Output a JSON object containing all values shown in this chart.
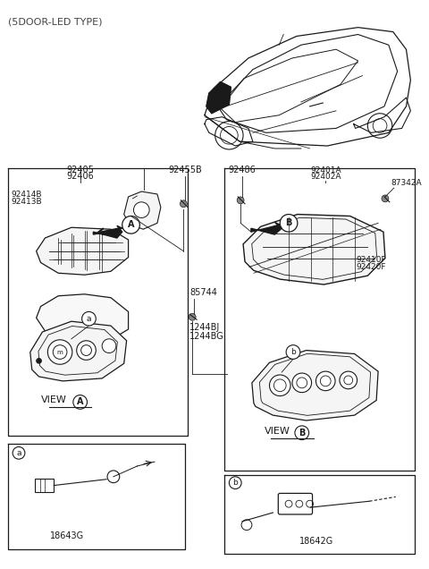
{
  "title": "(5DOOR-LED TYPE)",
  "bg_color": "#ffffff",
  "line_color": "#1a1a1a",
  "part_numbers": {
    "pn_92405": "92405",
    "pn_92406": "92406",
    "pn_92414B": "92414B",
    "pn_92413B": "92413B",
    "pn_92455B": "92455B",
    "pn_92486": "92486",
    "pn_92401A": "92401A",
    "pn_92402A": "92402A",
    "pn_87342A": "87342A",
    "pn_85744": "85744",
    "pn_1244BJ": "1244BJ",
    "pn_1244BG": "1244BG",
    "pn_92410F": "92410F",
    "pn_92420F": "92420F",
    "pn_18643G": "18643G",
    "pn_18642G": "18642G"
  },
  "view_a": "VIEW",
  "view_b": "VIEW",
  "fig_width": 4.8,
  "fig_height": 6.36
}
